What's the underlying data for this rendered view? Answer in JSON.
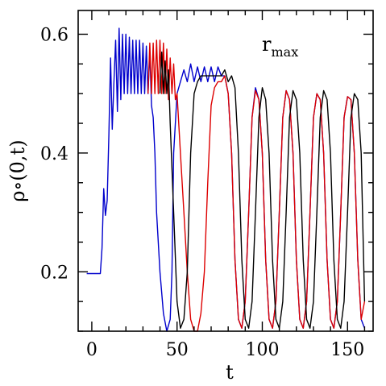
{
  "chart_data": {
    "type": "line",
    "title": "",
    "xlabel": "t",
    "ylabel": "ρ∘(0,t)",
    "xlim": [
      -8,
      165
    ],
    "ylim": [
      0.1,
      0.64
    ],
    "x_ticks": [
      0,
      50,
      100,
      150
    ],
    "x_tick_labels": [
      "0",
      "50",
      "100",
      "150"
    ],
    "y_ticks": [
      0.2,
      0.4,
      0.6
    ],
    "y_tick_labels": [
      "0.2",
      "0.4",
      "0.6"
    ],
    "grid": false,
    "annotation": {
      "text": "r",
      "subscript": "max"
    },
    "series": [
      {
        "color": "#0000cc",
        "x": [
          -3,
          5,
          6,
          7,
          8,
          9,
          10,
          11,
          12,
          13,
          14,
          15,
          16,
          17,
          18,
          19,
          20,
          21,
          22,
          23,
          24,
          25,
          26,
          27,
          28,
          29,
          30,
          31,
          32,
          33,
          34,
          35,
          36,
          37,
          38,
          40,
          42,
          44,
          46,
          47,
          48,
          50,
          52,
          54,
          56,
          58,
          60,
          62,
          64,
          66,
          68,
          70,
          72,
          74,
          76,
          78,
          80,
          82,
          84,
          86,
          88,
          90,
          92,
          94,
          96,
          98,
          100,
          102,
          104,
          106,
          108,
          110,
          112,
          114,
          116,
          118,
          120,
          122,
          124,
          126,
          128,
          130,
          132,
          134,
          136,
          138,
          140,
          142,
          144,
          146,
          148,
          150,
          152,
          154,
          156,
          158,
          160
        ],
        "y": [
          0.197,
          0.197,
          0.24,
          0.34,
          0.295,
          0.32,
          0.43,
          0.56,
          0.44,
          0.52,
          0.59,
          0.47,
          0.61,
          0.49,
          0.6,
          0.5,
          0.6,
          0.5,
          0.595,
          0.5,
          0.59,
          0.5,
          0.59,
          0.5,
          0.59,
          0.5,
          0.585,
          0.5,
          0.58,
          0.5,
          0.57,
          0.48,
          0.46,
          0.4,
          0.3,
          0.2,
          0.13,
          0.1,
          0.12,
          0.2,
          0.4,
          0.5,
          0.52,
          0.54,
          0.52,
          0.55,
          0.52,
          0.545,
          0.52,
          0.545,
          0.52,
          0.545,
          0.52,
          0.545,
          0.53,
          0.53,
          0.5,
          0.4,
          0.22,
          0.12,
          0.105,
          0.15,
          0.3,
          0.46,
          0.51,
          0.49,
          0.4,
          0.22,
          0.12,
          0.105,
          0.15,
          0.3,
          0.46,
          0.505,
          0.49,
          0.4,
          0.22,
          0.12,
          0.105,
          0.15,
          0.3,
          0.46,
          0.5,
          0.49,
          0.4,
          0.22,
          0.12,
          0.105,
          0.15,
          0.3,
          0.46,
          0.495,
          0.49,
          0.4,
          0.22,
          0.12,
          0.105
        ]
      },
      {
        "color": "#dd0000",
        "x": [
          33,
          34,
          35,
          36,
          37,
          38,
          39,
          40,
          41,
          42,
          43,
          44,
          45,
          46,
          47,
          48,
          49,
          50,
          52,
          54,
          56,
          58,
          60,
          62,
          64,
          66,
          68,
          70,
          72,
          74,
          76,
          78,
          80,
          82,
          84,
          86,
          88,
          90,
          92,
          94,
          96,
          98,
          100,
          102,
          104,
          106,
          108,
          110,
          112,
          114,
          116,
          118,
          120,
          122,
          124,
          126,
          128,
          130,
          132,
          134,
          136,
          138,
          140,
          142,
          144,
          146,
          148,
          150,
          152,
          154,
          156,
          158,
          160
        ],
        "y": [
          0.5,
          0.585,
          0.5,
          0.585,
          0.5,
          0.59,
          0.5,
          0.59,
          0.5,
          0.585,
          0.5,
          0.575,
          0.49,
          0.56,
          0.5,
          0.55,
          0.49,
          0.5,
          0.4,
          0.3,
          0.2,
          0.12,
          0.1,
          0.1,
          0.13,
          0.2,
          0.35,
          0.48,
          0.51,
          0.52,
          0.52,
          0.53,
          0.5,
          0.4,
          0.22,
          0.12,
          0.105,
          0.15,
          0.3,
          0.46,
          0.505,
          0.49,
          0.4,
          0.22,
          0.12,
          0.105,
          0.15,
          0.3,
          0.46,
          0.505,
          0.49,
          0.4,
          0.22,
          0.12,
          0.105,
          0.15,
          0.3,
          0.46,
          0.5,
          0.49,
          0.4,
          0.22,
          0.12,
          0.105,
          0.15,
          0.3,
          0.46,
          0.495,
          0.49,
          0.4,
          0.22,
          0.12,
          0.15
        ]
      },
      {
        "color": "#000000",
        "x": [
          40,
          41,
          42,
          43,
          44,
          45,
          46,
          48,
          50,
          52,
          54,
          56,
          58,
          60,
          62,
          64,
          66,
          68,
          70,
          72,
          74,
          76,
          78,
          80,
          82,
          84,
          86,
          88,
          90,
          92,
          94,
          96,
          98,
          100,
          102,
          104,
          106,
          108,
          110,
          112,
          114,
          116,
          118,
          120,
          122,
          124,
          126,
          128,
          130,
          132,
          134,
          136,
          138,
          140,
          142,
          144,
          146,
          148,
          150,
          152,
          154,
          156,
          158,
          160
        ],
        "y": [
          0.5,
          0.57,
          0.5,
          0.555,
          0.5,
          0.54,
          0.45,
          0.3,
          0.15,
          0.105,
          0.12,
          0.2,
          0.4,
          0.5,
          0.52,
          0.53,
          0.53,
          0.53,
          0.53,
          0.53,
          0.53,
          0.53,
          0.54,
          0.52,
          0.53,
          0.51,
          0.4,
          0.22,
          0.12,
          0.105,
          0.15,
          0.3,
          0.46,
          0.51,
          0.49,
          0.4,
          0.22,
          0.12,
          0.105,
          0.15,
          0.3,
          0.46,
          0.505,
          0.49,
          0.4,
          0.22,
          0.12,
          0.105,
          0.15,
          0.3,
          0.46,
          0.505,
          0.49,
          0.4,
          0.22,
          0.12,
          0.105,
          0.15,
          0.3,
          0.46,
          0.5,
          0.49,
          0.4,
          0.15
        ]
      }
    ]
  }
}
